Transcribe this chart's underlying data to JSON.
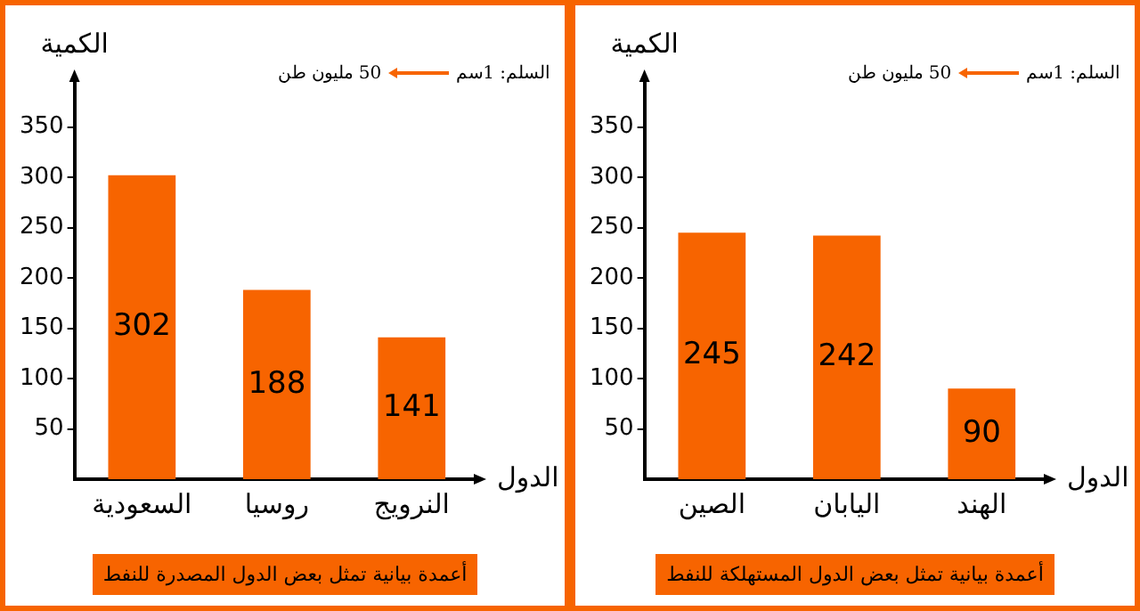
{
  "chart_data": [
    {
      "type": "bar",
      "title": "أعمدة بيانية تمثل بعض الدول المصدرة للنفط",
      "xlabel": "الدول",
      "ylabel": "الكمية",
      "annotations": [
        "السلم: 1سم",
        "50 مليون طن"
      ],
      "categories": [
        "السعودية",
        "روسيا",
        "النرويج"
      ],
      "values": [
        302,
        188,
        141
      ],
      "color": "#f76400",
      "ylim": [
        0,
        400
      ],
      "yticks": [
        50,
        100,
        150,
        200,
        250,
        300,
        350
      ],
      "grid": false,
      "data_labels": true
    },
    {
      "type": "bar",
      "title": "أعمدة بيانية تمثل بعض الدول المستهلكة للنفط",
      "xlabel": "الدول",
      "ylabel": "الكمية",
      "annotations": [
        "السلم: 1سم",
        "50 مليون طن"
      ],
      "categories": [
        "الصين",
        "اليابان",
        "الهند"
      ],
      "values": [
        245,
        242,
        90
      ],
      "color": "#f76400",
      "ylim": [
        0,
        400
      ],
      "yticks": [
        50,
        100,
        150,
        200,
        250,
        300,
        350
      ],
      "grid": false,
      "data_labels": true
    }
  ]
}
